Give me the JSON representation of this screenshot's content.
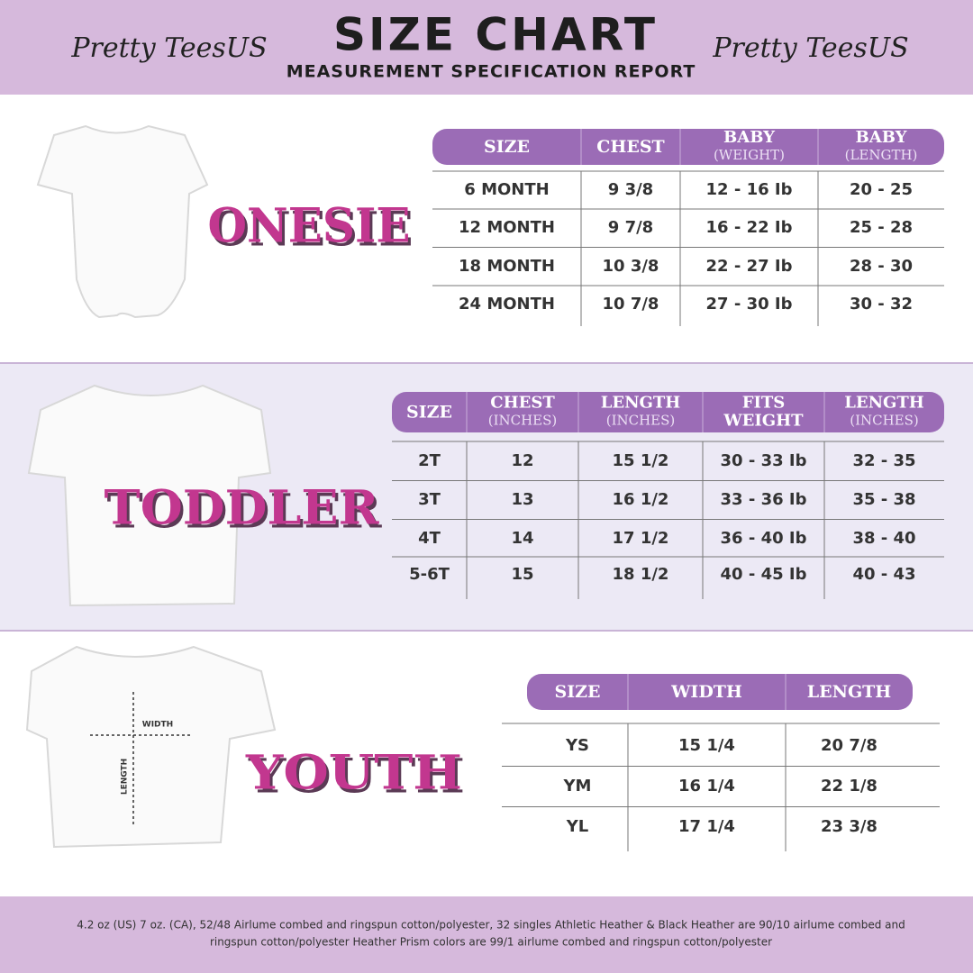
{
  "header": {
    "brand_left": "Pretty TeesUS",
    "title": "SIZE CHART",
    "subtitle": "MEASUREMENT SPECIFICATION REPORT",
    "brand_right": "Pretty TeesUS"
  },
  "sections": [
    {
      "label": "ONESIE",
      "table": {
        "columns": [
          [
            "SIZE"
          ],
          [
            "CHEST"
          ],
          [
            "BABY",
            "(WEIGHT)"
          ],
          [
            "BABY",
            "(LENGTH)"
          ]
        ],
        "rows": [
          [
            "6 MONTH",
            "9 3/8",
            "12 - 16 Ib",
            "20 - 25"
          ],
          [
            "12 MONTH",
            "9 7/8",
            "16 - 22 Ib",
            "25 - 28"
          ],
          [
            "18 MONTH",
            "10 3/8",
            "22 - 27 Ib",
            "28 - 30"
          ],
          [
            "24 MONTH",
            "10 7/8",
            "27 - 30 Ib",
            "30 - 32"
          ]
        ]
      }
    },
    {
      "label": "TODDLER",
      "table": {
        "columns": [
          [
            "SIZE"
          ],
          [
            "CHEST",
            "(INCHES)"
          ],
          [
            "LENGTH",
            "(INCHES)"
          ],
          [
            "FITS",
            "WEIGHT"
          ],
          [
            "LENGTH",
            "(INCHES)"
          ]
        ],
        "rows": [
          [
            "2T",
            "12",
            "15 1/2",
            "30 - 33 Ib",
            "32 - 35"
          ],
          [
            "3T",
            "13",
            "16 1/2",
            "33 - 36 Ib",
            "35 - 38"
          ],
          [
            "4T",
            "14",
            "17 1/2",
            "36 - 40 Ib",
            "38 - 40"
          ],
          [
            "5-6T",
            "15",
            "18 1/2",
            "40 - 45 Ib",
            "40 - 43"
          ]
        ]
      }
    },
    {
      "label": "YOUTH",
      "table": {
        "columns": [
          [
            "SIZE"
          ],
          [
            "WIDTH"
          ],
          [
            "LENGTH"
          ]
        ],
        "rows": [
          [
            "YS",
            "15 1/4",
            "20 7/8"
          ],
          [
            "YM",
            "16 1/4",
            "22 1/8"
          ],
          [
            "YL",
            "17 1/4",
            "23 3/8"
          ]
        ]
      }
    }
  ],
  "youth_diagram": {
    "width": "WIDTH",
    "length": "LENGTH"
  },
  "footer": [
    "4.2 oz (US) 7 oz. (CA), 52/48 Airlume combed and ringspun cotton/polyester, 32 singles Athletic Heather & Black Heather are 90/10 airlume combed and",
    "ringspun cotton/polyester Heather Prism colors are 99/1 airlume combed and ringspun cotton/polyester"
  ]
}
